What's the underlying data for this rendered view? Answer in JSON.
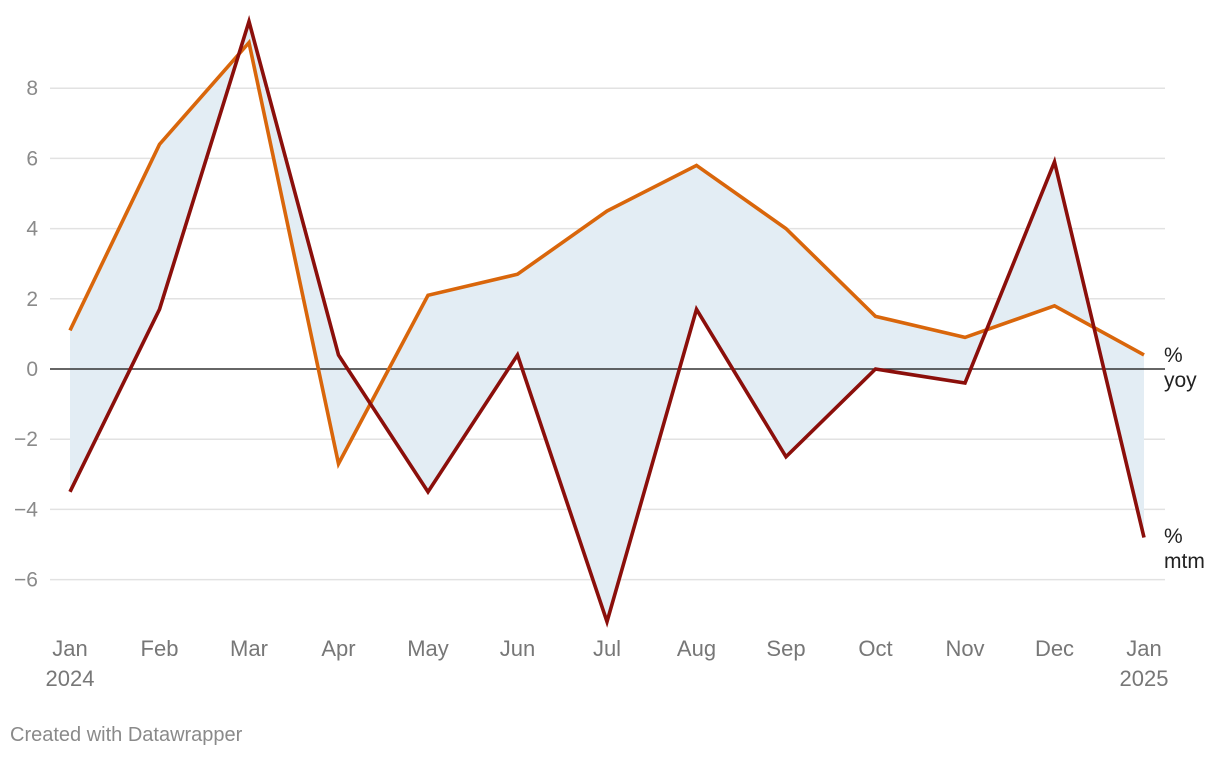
{
  "chart_data": {
    "type": "line",
    "title": "",
    "xlabel": "",
    "ylabel": "",
    "ylim": [
      -7.5,
      10
    ],
    "yticks": [
      8,
      6,
      4,
      2,
      0,
      -2,
      -4,
      -6
    ],
    "ytick_labels": [
      "8",
      "6",
      "4",
      "2",
      "0",
      "−2",
      "−4",
      "−6"
    ],
    "grid": true,
    "categories": [
      "Jan",
      "Feb",
      "Mar",
      "Apr",
      "May",
      "Jun",
      "Jul",
      "Aug",
      "Sep",
      "Oct",
      "Nov",
      "Dec",
      "Jan"
    ],
    "year_labels": [
      "2024",
      "",
      "",
      "",
      "",
      "",
      "",
      "",
      "",
      "",
      "",
      "",
      "2025"
    ],
    "series": [
      {
        "name": "% yoy",
        "label_line1": "%",
        "label_line2": "yoy",
        "color": "#d9660b",
        "values": [
          1.1,
          6.4,
          9.3,
          -2.7,
          2.1,
          2.7,
          4.5,
          5.8,
          4.0,
          1.5,
          0.9,
          1.8,
          0.4
        ]
      },
      {
        "name": "% mtm",
        "label_line1": "%",
        "label_line2": "mtm",
        "color": "#8b0f0b",
        "values": [
          -3.5,
          1.7,
          9.9,
          0.4,
          -3.5,
          0.4,
          -7.2,
          1.7,
          -2.5,
          0.0,
          -0.4,
          5.9,
          -4.8
        ]
      }
    ],
    "fill_between_color": "#e3edf4",
    "zero_line_color": "#333333",
    "grid_color": "#e2e2e2"
  },
  "footer": {
    "credit": "Created with Datawrapper"
  }
}
